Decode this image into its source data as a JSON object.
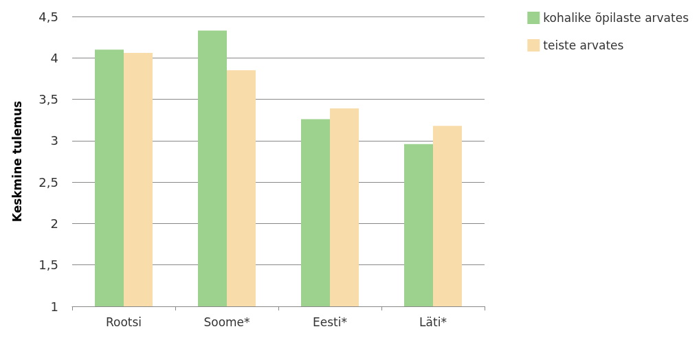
{
  "chart_data": {
    "type": "bar",
    "ylabel": "Keskmine tulemus",
    "categories": [
      "Rootsi",
      "Soome*",
      "Eesti*",
      "Läti*"
    ],
    "series": [
      {
        "name": "kohalike õpilaste arvates",
        "color": "#9dd18e",
        "values": [
          4.1,
          4.33,
          3.26,
          2.96
        ]
      },
      {
        "name": "teiste arvates",
        "color": "#f8dcaa",
        "values": [
          4.06,
          3.85,
          3.39,
          3.18
        ]
      }
    ],
    "ylim": [
      1,
      4.5
    ],
    "yticks": [
      1,
      {
        "value": 1.5,
        "label": "1,5"
      },
      2,
      {
        "value": 2.5,
        "label": "2,5"
      },
      3,
      {
        "value": 3.5,
        "label": "3,5"
      },
      4,
      {
        "value": 4.5,
        "label": "4,5"
      }
    ],
    "grid": "y",
    "legend": "top right"
  }
}
